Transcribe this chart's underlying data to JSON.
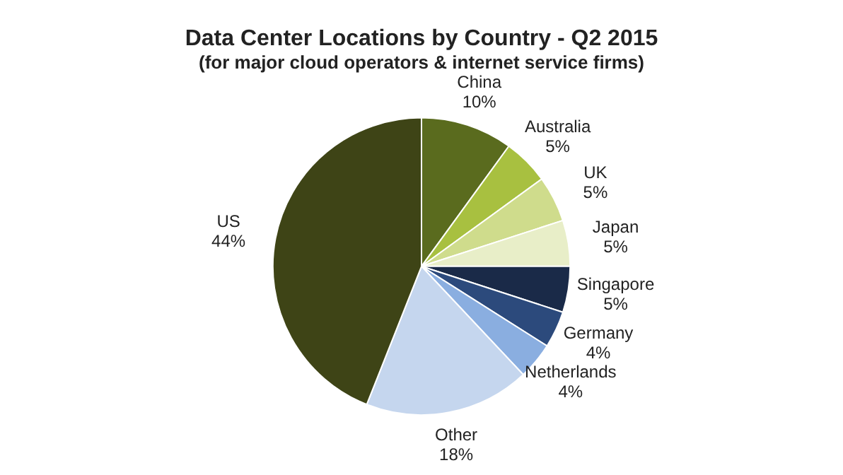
{
  "chart_data": {
    "type": "pie",
    "title": "Data Center Locations by Country - Q2 2015",
    "subtitle": "(for major cloud operators & internet service firms)",
    "categories": [
      "China",
      "Australia",
      "UK",
      "Japan",
      "Singapore",
      "Germany",
      "Netherlands",
      "Other",
      "US"
    ],
    "values": [
      10,
      5,
      5,
      5,
      5,
      4,
      4,
      18,
      44
    ],
    "colors": [
      "#5a6b1e",
      "#a8c040",
      "#cfdc8c",
      "#e8eec8",
      "#1a2a48",
      "#2c4a7c",
      "#8aaee0",
      "#c5d6ee",
      "#3e4416"
    ],
    "value_labels": [
      "10%",
      "5%",
      "5%",
      "5%",
      "5%",
      "4%",
      "4%",
      "18%",
      "44%"
    ],
    "legend": false
  }
}
